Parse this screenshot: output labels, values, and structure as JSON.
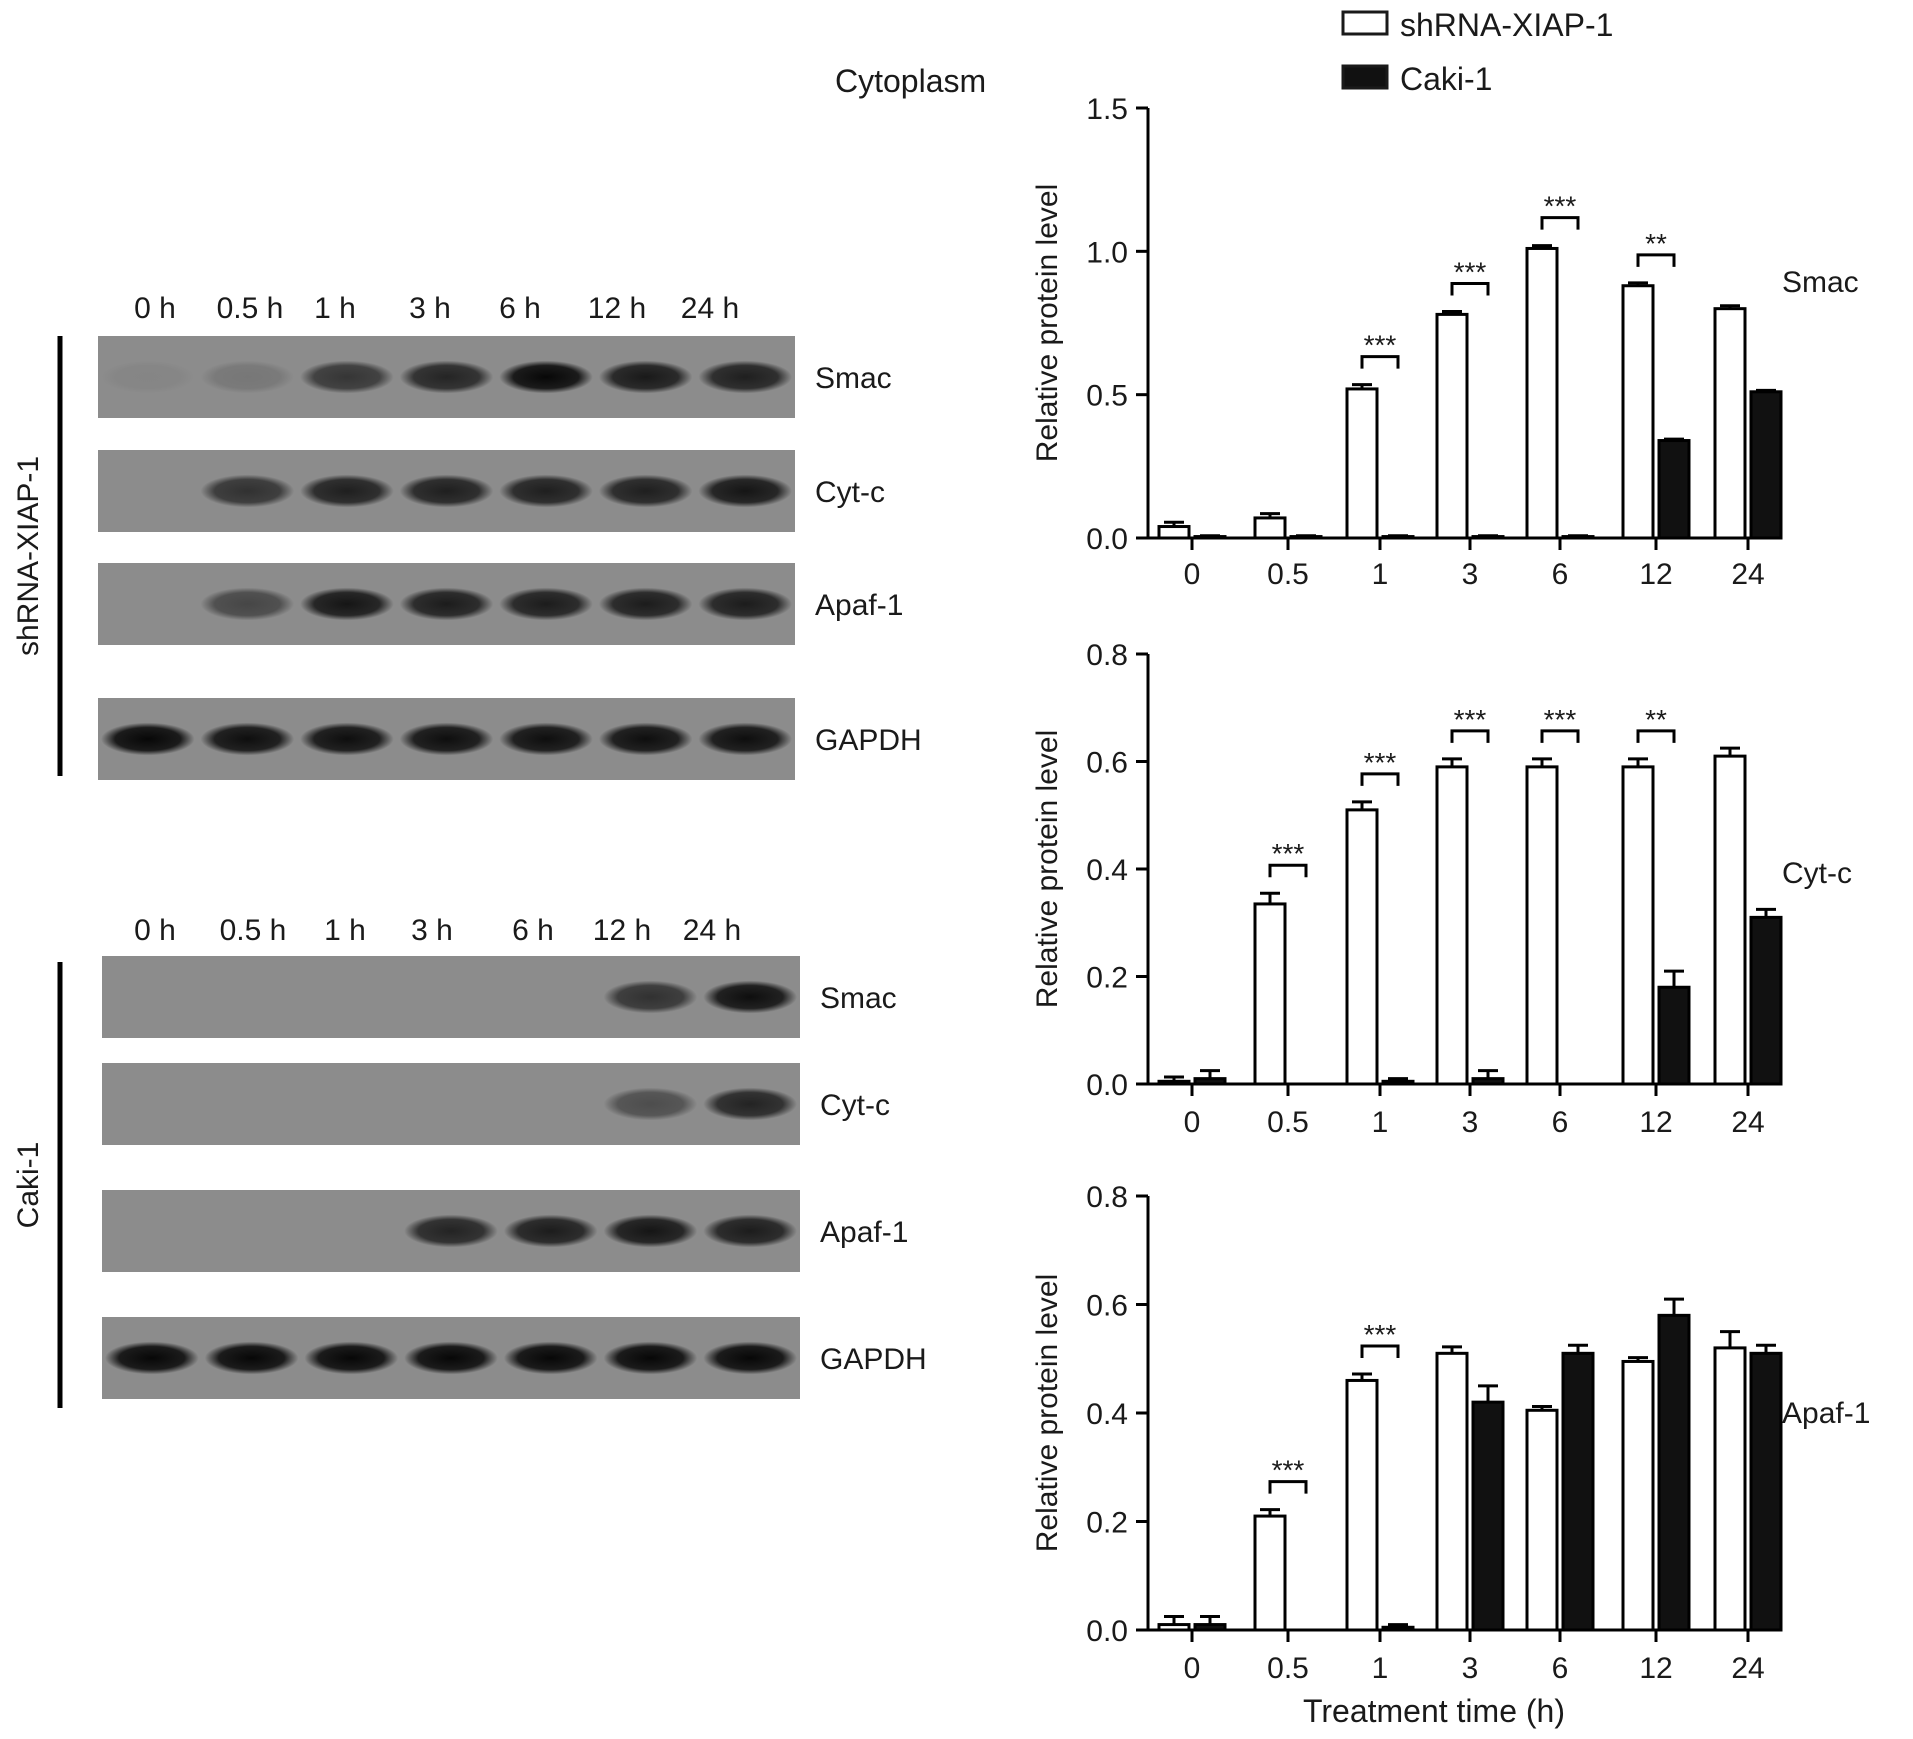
{
  "figure": {
    "section_label": "Cytoplasm",
    "legend": [
      {
        "label": "shRNA-XIAP-1",
        "swatch": "open"
      },
      {
        "label": "Caki-1",
        "swatch": "filled"
      }
    ],
    "blots": [
      {
        "group_label": "shRNA-XIAP-1",
        "lane_labels": [
          "0 h",
          "0.5 h",
          "1 h",
          "3 h",
          "6 h",
          "12 h",
          "24 h"
        ],
        "rows": [
          {
            "label": "Smac",
            "band_intensity": [
              0.05,
              0.15,
              0.62,
              0.74,
              0.95,
              0.82,
              0.78
            ]
          },
          {
            "label": "Cyt-c",
            "band_intensity": [
              0.0,
              0.65,
              0.78,
              0.78,
              0.78,
              0.78,
              0.85
            ]
          },
          {
            "label": "Apaf-1",
            "band_intensity": [
              0.0,
              0.5,
              0.85,
              0.8,
              0.8,
              0.8,
              0.8
            ]
          },
          {
            "label": "GAPDH",
            "band_intensity": [
              0.95,
              0.9,
              0.9,
              0.9,
              0.9,
              0.9,
              0.9
            ]
          }
        ]
      },
      {
        "group_label": "Caki-1",
        "lane_labels": [
          "0 h",
          "0.5 h",
          "1 h",
          "3 h",
          "6 h",
          "12 h",
          "24 h"
        ],
        "rows": [
          {
            "label": "Smac",
            "band_intensity": [
              0,
              0,
              0,
              0,
              0,
              0.65,
              0.9
            ]
          },
          {
            "label": "Cyt-c",
            "band_intensity": [
              0,
              0,
              0,
              0,
              0,
              0.45,
              0.75
            ]
          },
          {
            "label": "Apaf-1",
            "band_intensity": [
              0,
              0,
              0,
              0.75,
              0.8,
              0.85,
              0.8
            ]
          },
          {
            "label": "GAPDH",
            "band_intensity": [
              0.95,
              0.95,
              0.95,
              0.95,
              0.95,
              0.95,
              0.95
            ]
          }
        ]
      }
    ]
  },
  "chart_data": [
    {
      "type": "bar",
      "title": "Smac",
      "categories": [
        "0",
        "0.5",
        "1",
        "3",
        "6",
        "12",
        "24"
      ],
      "ylabel": "Relative protein level",
      "xlabel": "",
      "ylim": [
        0,
        1.5
      ],
      "yticks": [
        "0.0",
        "0.5",
        "1.0",
        "1.5"
      ],
      "series": [
        {
          "name": "shRNA-XIAP-1",
          "style": "open",
          "values": [
            0.04,
            0.07,
            0.52,
            0.78,
            1.01,
            0.88,
            0.8
          ],
          "errors": [
            0.015,
            0.015,
            0.015,
            0.01,
            0.01,
            0.01,
            0.01
          ]
        },
        {
          "name": "Caki-1",
          "style": "filled",
          "values": [
            0.005,
            0.005,
            0.005,
            0.005,
            0.005,
            0.34,
            0.51
          ],
          "errors": [
            0.003,
            0.003,
            0.003,
            0.003,
            0.003,
            0.005,
            0.005
          ]
        }
      ],
      "significance": [
        "",
        "",
        "***",
        "***",
        "***",
        "**",
        ""
      ]
    },
    {
      "type": "bar",
      "title": "Cyt-c",
      "categories": [
        "0",
        "0.5",
        "1",
        "3",
        "6",
        "12",
        "24"
      ],
      "ylabel": "Relative protein level",
      "xlabel": "",
      "ylim": [
        0,
        0.8
      ],
      "yticks": [
        "0.0",
        "0.2",
        "0.4",
        "0.6",
        "0.8"
      ],
      "series": [
        {
          "name": "shRNA-XIAP-1",
          "style": "open",
          "values": [
            0.005,
            0.335,
            0.51,
            0.59,
            0.59,
            0.59,
            0.61
          ],
          "errors": [
            0.008,
            0.02,
            0.015,
            0.015,
            0.015,
            0.015,
            0.015
          ]
        },
        {
          "name": "Caki-1",
          "style": "filled",
          "values": [
            0.01,
            0.0,
            0.005,
            0.01,
            0.0,
            0.18,
            0.31
          ],
          "errors": [
            0.015,
            0.0,
            0.005,
            0.015,
            0.0,
            0.03,
            0.015
          ]
        }
      ],
      "significance": [
        "",
        "***",
        "***",
        "***",
        "***",
        "**",
        ""
      ]
    },
    {
      "type": "bar",
      "title": "Apaf-1",
      "categories": [
        "0",
        "0.5",
        "1",
        "3",
        "6",
        "12",
        "24"
      ],
      "ylabel": "Relative protein level",
      "xlabel": "Treatment time (h)",
      "ylim": [
        0,
        0.8
      ],
      "yticks": [
        "0.0",
        "0.2",
        "0.4",
        "0.6",
        "0.8"
      ],
      "series": [
        {
          "name": "shRNA-XIAP-1",
          "style": "open",
          "values": [
            0.01,
            0.21,
            0.46,
            0.51,
            0.405,
            0.495,
            0.52
          ],
          "errors": [
            0.015,
            0.012,
            0.012,
            0.012,
            0.007,
            0.007,
            0.03
          ]
        },
        {
          "name": "Caki-1",
          "style": "filled",
          "values": [
            0.01,
            0.0,
            0.005,
            0.42,
            0.51,
            0.58,
            0.51
          ],
          "errors": [
            0.015,
            0.0,
            0.005,
            0.03,
            0.015,
            0.03,
            0.015
          ]
        }
      ],
      "significance": [
        "",
        "***",
        "***",
        "",
        "",
        "",
        ""
      ]
    }
  ]
}
